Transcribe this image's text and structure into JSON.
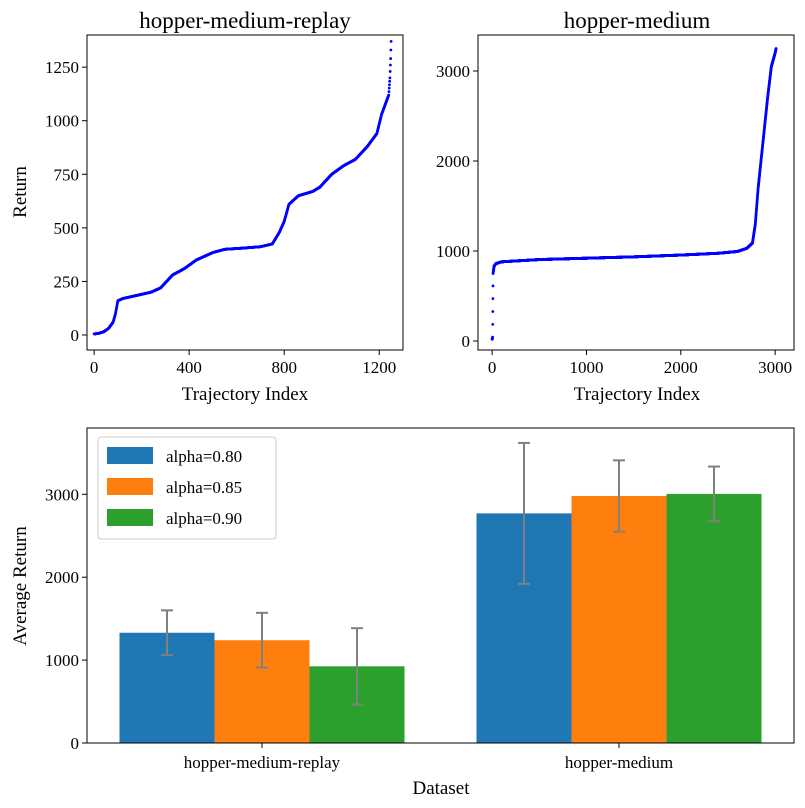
{
  "chart_data": [
    {
      "type": "scatter",
      "title": "hopper-medium-replay",
      "xlabel": "Trajectory Index",
      "ylabel": "Return",
      "xlim": [
        -30,
        1300
      ],
      "ylim": [
        -70,
        1400
      ],
      "xticks": [
        0,
        400,
        800,
        1200
      ],
      "yticks": [
        0,
        250,
        500,
        750,
        1000,
        1250
      ],
      "color": "#0000ff",
      "points_count": 1250,
      "profile": [
        [
          0,
          5
        ],
        [
          20,
          8
        ],
        [
          40,
          15
        ],
        [
          60,
          30
        ],
        [
          80,
          60
        ],
        [
          90,
          100
        ],
        [
          100,
          160
        ],
        [
          120,
          170
        ],
        [
          160,
          180
        ],
        [
          200,
          190
        ],
        [
          240,
          200
        ],
        [
          280,
          220
        ],
        [
          330,
          280
        ],
        [
          380,
          310
        ],
        [
          430,
          350
        ],
        [
          500,
          385
        ],
        [
          550,
          400
        ],
        [
          620,
          405
        ],
        [
          700,
          412
        ],
        [
          750,
          425
        ],
        [
          780,
          480
        ],
        [
          800,
          530
        ],
        [
          820,
          610
        ],
        [
          860,
          650
        ],
        [
          920,
          670
        ],
        [
          950,
          690
        ],
        [
          1000,
          750
        ],
        [
          1050,
          790
        ],
        [
          1100,
          820
        ],
        [
          1150,
          880
        ],
        [
          1190,
          940
        ],
        [
          1210,
          1030
        ],
        [
          1230,
          1090
        ],
        [
          1240,
          1120
        ],
        [
          1245,
          1200
        ],
        [
          1248,
          1290
        ],
        [
          1250,
          1370
        ]
      ]
    },
    {
      "type": "scatter",
      "title": "hopper-medium",
      "xlabel": "Trajectory Index",
      "ylabel": "",
      "xlim": [
        -150,
        3200
      ],
      "ylim": [
        -100,
        3400
      ],
      "xticks": [
        0,
        1000,
        2000,
        3000
      ],
      "yticks": [
        0,
        1000,
        2000,
        3000
      ],
      "color": "#0000ff",
      "points_count": 3000,
      "profile": [
        [
          0,
          20
        ],
        [
          5,
          40
        ],
        [
          10,
          750
        ],
        [
          20,
          830
        ],
        [
          40,
          860
        ],
        [
          100,
          880
        ],
        [
          500,
          905
        ],
        [
          1000,
          920
        ],
        [
          1500,
          935
        ],
        [
          2000,
          955
        ],
        [
          2400,
          975
        ],
        [
          2600,
          995
        ],
        [
          2700,
          1030
        ],
        [
          2760,
          1090
        ],
        [
          2790,
          1300
        ],
        [
          2820,
          1700
        ],
        [
          2850,
          2000
        ],
        [
          2880,
          2300
        ],
        [
          2920,
          2700
        ],
        [
          2960,
          3050
        ],
        [
          3000,
          3200
        ],
        [
          3010,
          3250
        ]
      ]
    },
    {
      "type": "bar",
      "title": "",
      "xlabel": "Dataset",
      "ylabel": "Average Return",
      "categories": [
        "hopper-medium-replay",
        "hopper-medium"
      ],
      "ylim": [
        0,
        3800
      ],
      "yticks": [
        0,
        1000,
        2000,
        3000
      ],
      "legend_position": "top-left",
      "errorbar_color": "#808080",
      "series": [
        {
          "name": "alpha=0.80",
          "color": "#1f77b4",
          "values": [
            1330,
            2770
          ],
          "errors": [
            270,
            850
          ]
        },
        {
          "name": "alpha=0.85",
          "color": "#ff7f0e",
          "values": [
            1240,
            2980
          ],
          "errors": [
            330,
            430
          ]
        },
        {
          "name": "alpha=0.90",
          "color": "#2ca02c",
          "values": [
            925,
            3005
          ],
          "errors": [
            460,
            330
          ]
        }
      ]
    }
  ]
}
